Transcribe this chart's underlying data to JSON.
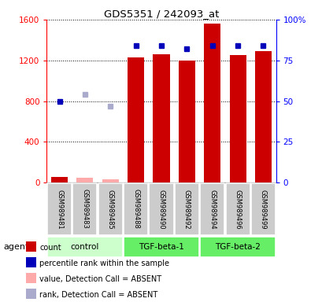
{
  "title": "GDS5351 / 242093_at",
  "samples": [
    "GSM989481",
    "GSM989483",
    "GSM989485",
    "GSM989488",
    "GSM989490",
    "GSM989492",
    "GSM989494",
    "GSM989496",
    "GSM989499"
  ],
  "groups": [
    {
      "name": "control",
      "color": "#ccffcc",
      "samples": [
        0,
        1,
        2
      ]
    },
    {
      "name": "TGF-beta-1",
      "color": "#66ee66",
      "samples": [
        3,
        4,
        5
      ]
    },
    {
      "name": "TGF-beta-2",
      "color": "#66ee66",
      "samples": [
        6,
        7,
        8
      ]
    }
  ],
  "count_values": [
    60,
    null,
    null,
    1230,
    1260,
    1200,
    1560,
    1250,
    1290
  ],
  "count_absent": [
    null,
    50,
    30,
    null,
    null,
    null,
    null,
    null,
    null
  ],
  "rank_values_pct": [
    50,
    null,
    null,
    84,
    84,
    82,
    84,
    84,
    84
  ],
  "rank_absent_pct": [
    null,
    54,
    47,
    null,
    null,
    null,
    null,
    null,
    null
  ],
  "ylim_left": [
    0,
    1600
  ],
  "ylim_right": [
    0,
    100
  ],
  "yticks_left": [
    0,
    400,
    800,
    1200,
    1600
  ],
  "yticks_right": [
    0,
    25,
    50,
    75,
    100
  ],
  "bar_color": "#cc0000",
  "bar_absent_color": "#ffaaaa",
  "rank_color": "#0000bb",
  "rank_absent_color": "#aaaacc",
  "legend_items": [
    {
      "color": "#cc0000",
      "label": "count"
    },
    {
      "color": "#0000bb",
      "label": "percentile rank within the sample"
    },
    {
      "color": "#ffaaaa",
      "label": "value, Detection Call = ABSENT"
    },
    {
      "color": "#aaaacc",
      "label": "rank, Detection Call = ABSENT"
    }
  ]
}
